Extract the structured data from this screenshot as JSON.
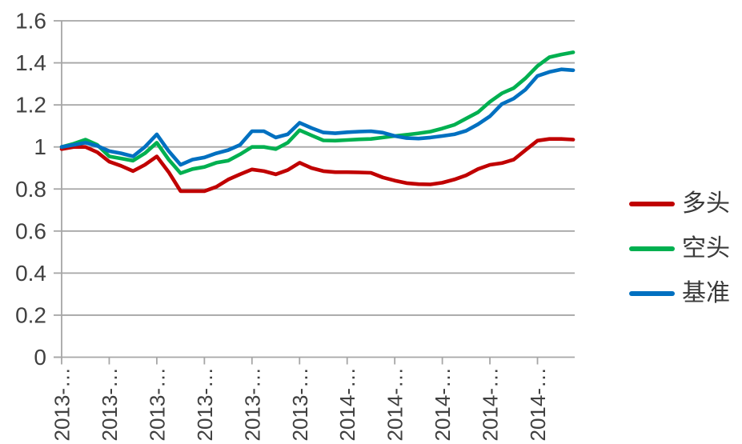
{
  "figure": {
    "background": "#FFFFFF"
  },
  "chart_data": {
    "type": "line",
    "title": "",
    "xlabel": "",
    "ylabel": "",
    "ylim": [
      0,
      1.6
    ],
    "y_tick_step": 0.2,
    "y_tick_labels": [
      "0",
      "0.2",
      "0.4",
      "0.6",
      "0.8",
      "1",
      "1.2",
      "1.4",
      "1.6"
    ],
    "x_tick_labels": [
      "2013-…",
      "2013-…",
      "2013-…",
      "2013-…",
      "2013-…",
      "2013-…",
      "2014-…",
      "2014-…",
      "2014-…",
      "2014-…",
      "2014-…"
    ],
    "x_points_per_tick": 4,
    "n_points": 44,
    "grid": "horizontal",
    "legend_position": "right",
    "axis_color": "#A6A6A6",
    "label_color": "#404040",
    "series": [
      {
        "name": "多头",
        "color": "#C00000",
        "values": [
          0.99,
          1.0,
          1.0,
          0.975,
          0.93,
          0.91,
          0.885,
          0.915,
          0.955,
          0.88,
          0.79,
          0.79,
          0.79,
          0.81,
          0.845,
          0.87,
          0.893,
          0.885,
          0.87,
          0.89,
          0.925,
          0.9,
          0.885,
          0.88,
          0.88,
          0.879,
          0.877,
          0.855,
          0.84,
          0.828,
          0.823,
          0.822,
          0.83,
          0.845,
          0.865,
          0.895,
          0.915,
          0.923,
          0.94,
          0.985,
          1.03,
          1.038,
          1.038,
          1.035
        ]
      },
      {
        "name": "空头",
        "color": "#00B050",
        "values": [
          1.0,
          1.015,
          1.035,
          1.01,
          0.955,
          0.945,
          0.935,
          0.97,
          1.02,
          0.94,
          0.875,
          0.895,
          0.905,
          0.925,
          0.935,
          0.965,
          1.0,
          1.0,
          0.99,
          1.02,
          1.08,
          1.055,
          1.031,
          1.03,
          1.033,
          1.036,
          1.038,
          1.045,
          1.052,
          1.058,
          1.065,
          1.073,
          1.088,
          1.105,
          1.135,
          1.165,
          1.215,
          1.255,
          1.28,
          1.327,
          1.385,
          1.427,
          1.44,
          1.45
        ]
      },
      {
        "name": "基准",
        "color": "#0070C0",
        "values": [
          1.0,
          1.01,
          1.02,
          1.005,
          0.98,
          0.97,
          0.955,
          1.0,
          1.06,
          0.98,
          0.915,
          0.94,
          0.95,
          0.97,
          0.985,
          1.01,
          1.075,
          1.075,
          1.045,
          1.06,
          1.115,
          1.09,
          1.069,
          1.065,
          1.07,
          1.073,
          1.075,
          1.068,
          1.052,
          1.042,
          1.04,
          1.045,
          1.052,
          1.06,
          1.077,
          1.108,
          1.146,
          1.204,
          1.23,
          1.273,
          1.338,
          1.357,
          1.369,
          1.365
        ]
      }
    ]
  }
}
